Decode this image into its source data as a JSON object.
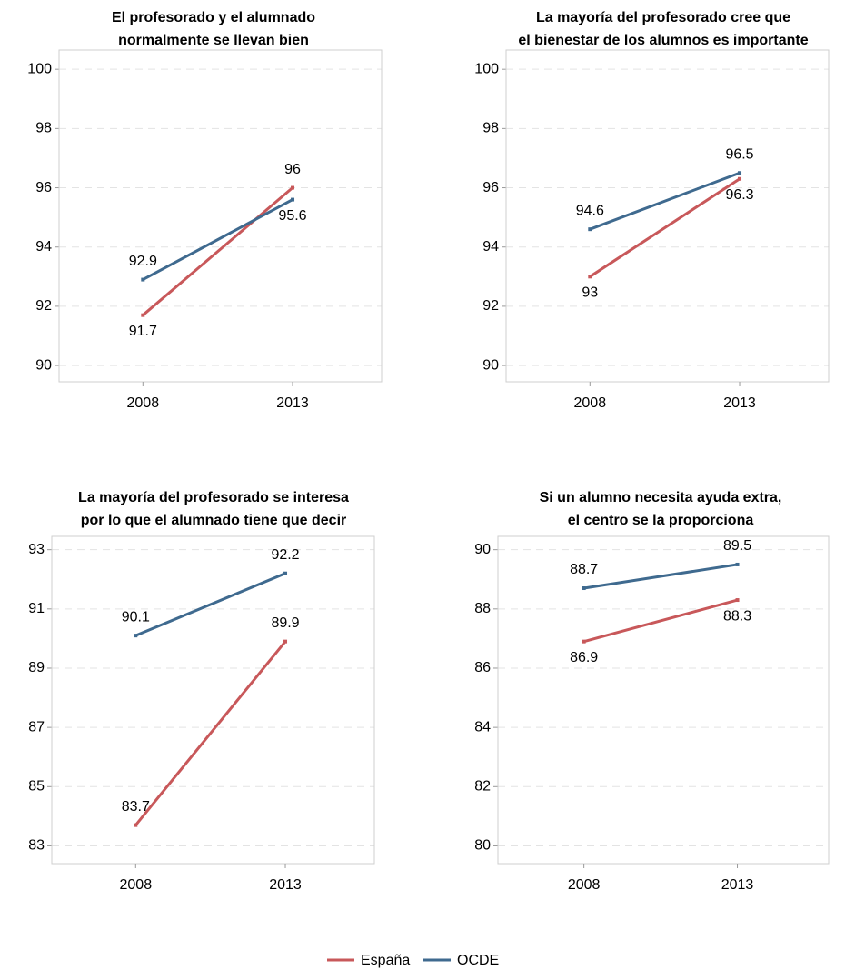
{
  "chart_data": [
    {
      "type": "line",
      "title": [
        "El profesorado y el alumnado",
        "normalmente se llevan bien"
      ],
      "categories": [
        "2008",
        "2013"
      ],
      "series": [
        {
          "name": "España",
          "color": "#c8585a",
          "values": [
            91.7,
            96
          ]
        },
        {
          "name": "OCDE",
          "color": "#3f6a8f",
          "values": [
            92.9,
            95.6
          ]
        }
      ],
      "ylim": [
        89.45,
        100.65
      ],
      "yticks": [
        90,
        92,
        94,
        96,
        98,
        100
      ],
      "grid": true
    },
    {
      "type": "line",
      "title": [
        "La mayoría del profesorado cree que",
        "el bienestar de los alumnos es importante"
      ],
      "categories": [
        "2008",
        "2013"
      ],
      "series": [
        {
          "name": "España",
          "color": "#c8585a",
          "values": [
            93,
            96.3
          ]
        },
        {
          "name": "OCDE",
          "color": "#3f6a8f",
          "values": [
            94.6,
            96.5
          ]
        }
      ],
      "ylim": [
        89.45,
        100.65
      ],
      "yticks": [
        90,
        92,
        94,
        96,
        98,
        100
      ],
      "grid": true
    },
    {
      "type": "line",
      "title": [
        "La mayoría del profesorado se interesa",
        "por lo que el alumnado tiene que decir"
      ],
      "categories": [
        "2008",
        "2013"
      ],
      "series": [
        {
          "name": "España",
          "color": "#c8585a",
          "values": [
            83.7,
            89.9
          ]
        },
        {
          "name": "OCDE",
          "color": "#3f6a8f",
          "values": [
            90.1,
            92.2
          ]
        }
      ],
      "ylim": [
        82.4,
        93.45
      ],
      "yticks": [
        83,
        85,
        87,
        89,
        91,
        93
      ],
      "grid": true
    },
    {
      "type": "line",
      "title": [
        "Si un alumno necesita ayuda extra,",
        "el centro se la proporciona"
      ],
      "categories": [
        "2008",
        "2013"
      ],
      "series": [
        {
          "name": "España",
          "color": "#c8585a",
          "values": [
            86.9,
            88.3
          ]
        },
        {
          "name": "OCDE",
          "color": "#3f6a8f",
          "values": [
            88.7,
            89.5
          ]
        }
      ],
      "ylim": [
        79.4,
        90.45
      ],
      "yticks": [
        80,
        82,
        84,
        86,
        88,
        90
      ],
      "grid": true
    }
  ]
}
